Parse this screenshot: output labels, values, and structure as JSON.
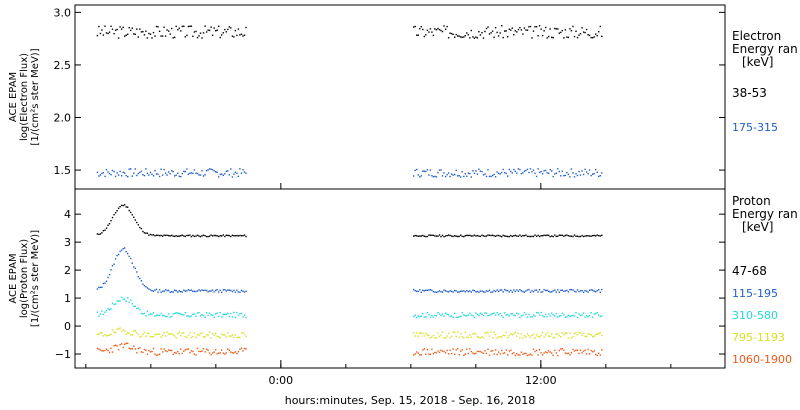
{
  "chart_data": [
    {
      "type": "scatter",
      "ylabel_lines": [
        "ACE EPAM",
        "log(Electron Flux)",
        "[1/(cm²s ster MeV)]"
      ],
      "ylim": [
        1.32,
        3.07
      ],
      "yticks": [
        {
          "v": 1.5,
          "label": "1.5"
        },
        {
          "v": 2.0,
          "label": "2.0"
        },
        {
          "v": 2.5,
          "label": "2.5"
        },
        {
          "v": 3.0,
          "label": "3.0"
        }
      ],
      "legend": {
        "title_lines": [
          "Electron",
          "Energy ran",
          "[keV]"
        ]
      },
      "series": [
        {
          "name": "38-53",
          "color": "#000000",
          "mean": 2.82,
          "noise": 0.06,
          "seed": 3
        },
        {
          "name": "175-315",
          "color": "#1f5fc8",
          "mean": 1.48,
          "noise": 0.04,
          "seed": 7
        }
      ]
    },
    {
      "type": "scatter",
      "ylabel_lines": [
        "ACE EPAM",
        "log(Proton Flux)",
        "[1/(cm²s ster MeV)]"
      ],
      "ylim": [
        -1.5,
        4.9
      ],
      "yticks": [
        {
          "v": -1,
          "label": "−1"
        },
        {
          "v": 0,
          "label": "0"
        },
        {
          "v": 1,
          "label": "1"
        },
        {
          "v": 2,
          "label": "2"
        },
        {
          "v": 3,
          "label": "3"
        },
        {
          "v": 4,
          "label": "4"
        }
      ],
      "legend": {
        "title_lines": [
          "Proton",
          "Energy ran",
          "[keV]"
        ]
      },
      "series": [
        {
          "name": "47-68",
          "color": "#000000",
          "mean": 3.25,
          "noise": 0.03,
          "seed": 11,
          "peak": 1.1
        },
        {
          "name": "115-195",
          "color": "#1f5fc8",
          "mean": 1.28,
          "noise": 0.05,
          "seed": 13,
          "peak": 1.5
        },
        {
          "name": "310-580",
          "color": "#22d8d8",
          "mean": 0.42,
          "noise": 0.09,
          "seed": 17,
          "peak": 0.6
        },
        {
          "name": "795-1193",
          "color": "#d8e020",
          "mean": -0.3,
          "noise": 0.11,
          "seed": 19,
          "peak": 0.15
        },
        {
          "name": "1060-1900",
          "color": "#ee5a18",
          "mean": -0.9,
          "noise": 0.13,
          "seed": 23,
          "peak": 0.2
        }
      ]
    }
  ],
  "x_axis": {
    "range_hours": [
      -9.5,
      20.5
    ],
    "ticks": [
      {
        "h": 0,
        "label": "0:00"
      },
      {
        "h": 12,
        "label": "12:00"
      }
    ],
    "xlabel": "hours:minutes, Sep. 15, 2018 - Sep. 16, 2018",
    "data_segments_hours": [
      [
        -8.5,
        -1.6
      ],
      [
        6.1,
        14.8
      ]
    ]
  }
}
